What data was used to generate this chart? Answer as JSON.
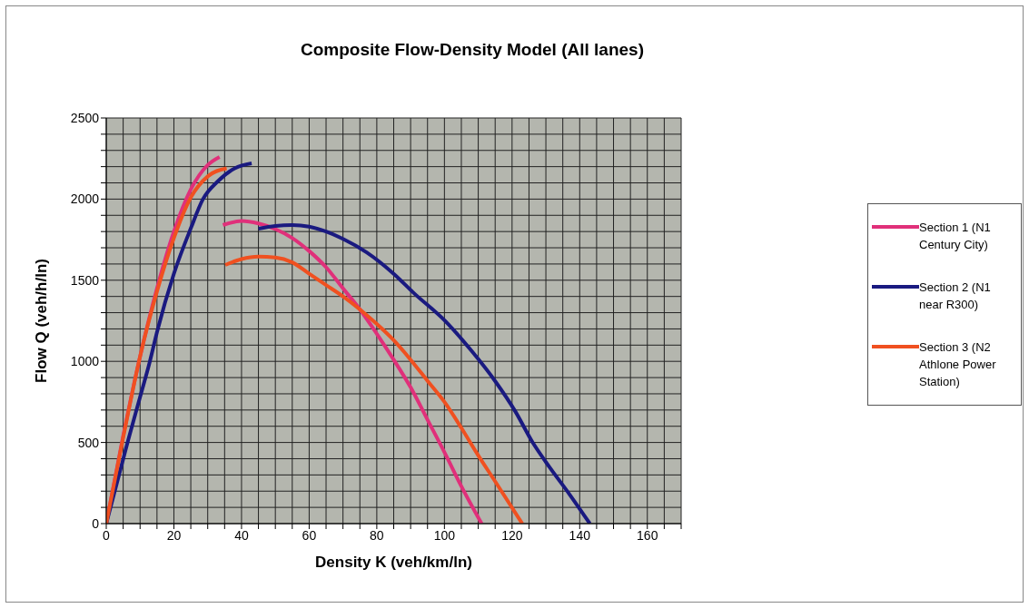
{
  "chart_data": {
    "type": "line",
    "title": "Composite Flow-Density Model (All lanes)",
    "xlabel": "Density K (veh/km/ln)",
    "ylabel": "Flow Q (veh/h/ln)",
    "xlim": [
      0,
      170
    ],
    "ylim": [
      0,
      2500
    ],
    "xticks": [
      0,
      {
        "value": 5,
        "label": null
      },
      {
        "value": 10,
        "label": null
      },
      {
        "value": 15,
        "label": null
      },
      20,
      {
        "value": 25,
        "label": null
      },
      {
        "value": 30,
        "label": null
      },
      {
        "value": 35,
        "label": null
      },
      40,
      {
        "value": 45,
        "label": null
      },
      {
        "value": 50,
        "label": null
      },
      {
        "value": 55,
        "label": null
      },
      60,
      {
        "value": 65,
        "label": null
      },
      {
        "value": 70,
        "label": null
      },
      {
        "value": 75,
        "label": null
      },
      80,
      {
        "value": 85,
        "label": null
      },
      {
        "value": 90,
        "label": null
      },
      {
        "value": 95,
        "label": null
      },
      100,
      {
        "value": 105,
        "label": null
      },
      {
        "value": 110,
        "label": null
      },
      {
        "value": 115,
        "label": null
      },
      120,
      {
        "value": 125,
        "label": null
      },
      {
        "value": 130,
        "label": null
      },
      {
        "value": 135,
        "label": null
      },
      140,
      {
        "value": 145,
        "label": null
      },
      {
        "value": 150,
        "label": null
      },
      {
        "value": 155,
        "label": null
      },
      160,
      {
        "value": 165,
        "label": null
      },
      {
        "value": 170,
        "label": null
      }
    ],
    "yticks": [
      0,
      {
        "value": 100,
        "label": null
      },
      {
        "value": 200,
        "label": null
      },
      {
        "value": 300,
        "label": null
      },
      {
        "value": 400,
        "label": null
      },
      500,
      {
        "value": 600,
        "label": null
      },
      {
        "value": 700,
        "label": null
      },
      {
        "value": 800,
        "label": null
      },
      {
        "value": 900,
        "label": null
      },
      1000,
      {
        "value": 1100,
        "label": null
      },
      {
        "value": 1200,
        "label": null
      },
      {
        "value": 1300,
        "label": null
      },
      {
        "value": 1400,
        "label": null
      },
      1500,
      {
        "value": 1600,
        "label": null
      },
      {
        "value": 1700,
        "label": null
      },
      {
        "value": 1800,
        "label": null
      },
      {
        "value": 1900,
        "label": null
      },
      2000,
      {
        "value": 2100,
        "label": null
      },
      {
        "value": 2200,
        "label": null
      },
      {
        "value": 2300,
        "label": null
      },
      {
        "value": 2400,
        "label": null
      },
      2500
    ],
    "grid": true,
    "legend": "right",
    "marker": "none",
    "line_style": "solid",
    "series": [
      {
        "name": "Section 1 (N1 Century City)",
        "color": "#e0307a",
        "x": [
          0,
          5,
          10,
          15,
          20,
          25,
          30,
          33.5,
          null,
          34.5,
          40,
          45,
          50,
          55,
          60,
          65,
          70,
          75,
          80,
          85,
          90,
          95,
          100,
          105,
          111
        ],
        "values": [
          0,
          540,
          1030,
          1450,
          1800,
          2060,
          2210,
          2260,
          null,
          1840,
          1865,
          1850,
          1815,
          1760,
          1680,
          1580,
          1450,
          1320,
          1170,
          1010,
          840,
          640,
          440,
          230,
          0
        ]
      },
      {
        "name": "Section 2 (N1 near R300)",
        "color": "#1a1a80",
        "x": [
          0,
          6.3,
          10,
          12.9,
          15,
          20,
          25,
          28.6,
          33,
          38,
          43,
          null,
          45,
          50,
          55,
          60,
          65,
          70,
          77,
          85,
          91,
          100,
          108,
          115,
          121,
          126,
          131,
          137,
          143
        ],
        "values": [
          0,
          500,
          780,
          1000,
          1180,
          1540,
          1820,
          2000,
          2110,
          2190,
          2220,
          null,
          1818,
          1835,
          1840,
          1830,
          1800,
          1755,
          1672,
          1540,
          1420,
          1253,
          1065,
          878,
          690,
          503,
          350,
          180,
          0
        ]
      },
      {
        "name": "Section 3 (N2 Athlone Power Station)",
        "color": "#f05020",
        "x": [
          0,
          5,
          10,
          15,
          20,
          25,
          30,
          35.6,
          null,
          35.2,
          40,
          45,
          50,
          55,
          60,
          65,
          70,
          75,
          80,
          85,
          90,
          95,
          100,
          105,
          110,
          115,
          123
        ],
        "values": [
          0,
          530,
          1030,
          1430,
          1760,
          2010,
          2140,
          2190,
          null,
          1594,
          1630,
          1645,
          1640,
          1610,
          1540,
          1470,
          1400,
          1320,
          1230,
          1130,
          1010,
          880,
          750,
          590,
          420,
          260,
          0
        ]
      }
    ]
  }
}
